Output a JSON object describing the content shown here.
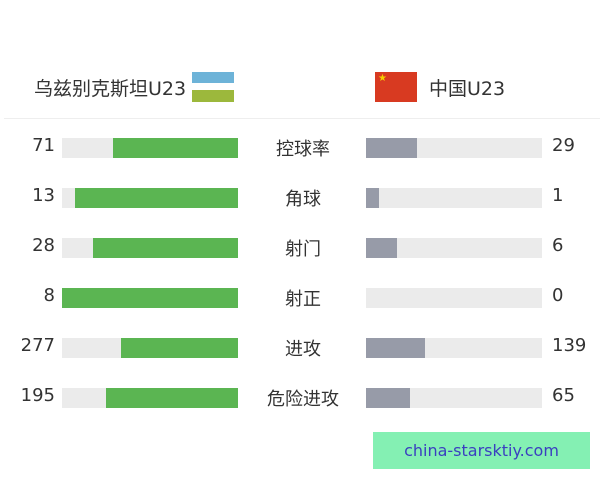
{
  "home": {
    "name": "乌兹别克斯坦U23",
    "flag": "uzbekistan-flag"
  },
  "away": {
    "name": "中国U23",
    "flag": "china-flag"
  },
  "colors": {
    "home_bar": "#5bb552",
    "away_bar": "#979ba8",
    "track": "#ebebeb"
  },
  "stats": [
    {
      "label": "控球率",
      "home": "71",
      "away": "29"
    },
    {
      "label": "角球",
      "home": "13",
      "away": "1"
    },
    {
      "label": "射门",
      "home": "28",
      "away": "6"
    },
    {
      "label": "射正",
      "home": "8",
      "away": "0"
    },
    {
      "label": "进攻",
      "home": "277",
      "away": "139"
    },
    {
      "label": "危险进攻",
      "home": "195",
      "away": "65"
    }
  ],
  "watermark": "china-starsktiy.com"
}
